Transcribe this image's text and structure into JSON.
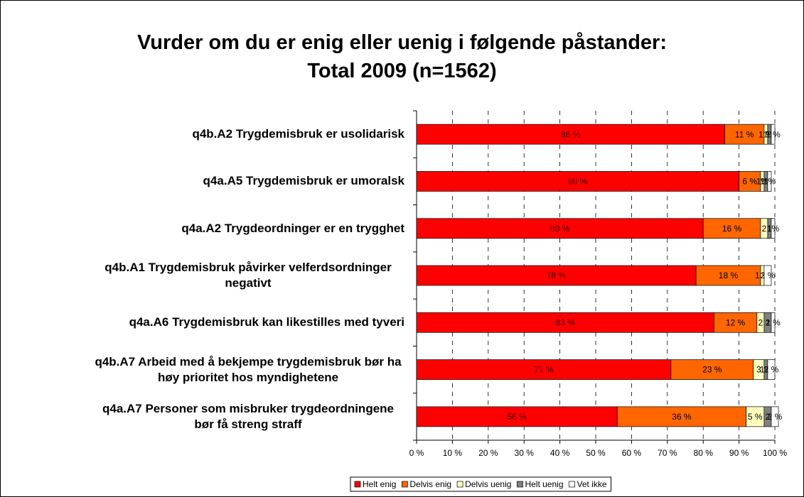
{
  "chart_data": {
    "type": "stacked_bar_horizontal",
    "title": "Vurder om du er enig eller uenig i følgende påstander:",
    "subtitle": "Total 2009 (n=1562)",
    "categories": [
      "q4b.A2 Trygdemisbruk er usolidarisk",
      "q4a.A5 Trygdemisbruk er umoralsk",
      "q4a.A2 Trygdeordninger er en trygghet",
      "q4b.A1 Trygdemisbruk påvirker velferdsordninger negativt",
      "q4a.A6 Trygdemisbruk kan likestilles med tyveri",
      "q4b.A7 Arbeid med å bekjempe trygdemisbruk bør ha høy prioritet hos myndighetene",
      "q4a.A7 Personer som misbruker trygdeordningene bør få streng straff"
    ],
    "series": [
      {
        "name": "Helt enig",
        "color": "#ff0000",
        "values": [
          86,
          90,
          80,
          78,
          83,
          71,
          56
        ],
        "value_labels": [
          "86 %",
          "90 %",
          "80 %",
          "78 %",
          "83 %",
          "71 %",
          "56 %"
        ]
      },
      {
        "name": "Delvis enig",
        "color": "#ff6600",
        "values": [
          11,
          6,
          16,
          18,
          12,
          23,
          36
        ],
        "value_labels": [
          "11 %",
          "6 %",
          "16 %",
          "18 %",
          "12 %",
          "23 %",
          "36 %"
        ]
      },
      {
        "name": "Delvis uenig",
        "color": "#ffffc0",
        "values": [
          1,
          1,
          2,
          1,
          2,
          3,
          5
        ],
        "value_labels": [
          "1 %",
          "1%",
          "2",
          "1 %",
          "2",
          "3",
          "5 %"
        ]
      },
      {
        "name": "Helt uenig",
        "color": "#808080",
        "values": [
          1,
          1,
          1,
          0,
          2,
          1,
          2
        ],
        "value_labels": [
          "1%",
          "1%",
          "1",
          null,
          "2",
          "1%",
          "2"
        ]
      },
      {
        "name": "Vet ikke",
        "color": "#ffffff",
        "values": [
          1,
          1,
          1,
          2,
          1,
          2,
          2
        ],
        "value_labels": [
          "1 %",
          "1%",
          "1%",
          "2 %",
          "1 %",
          "2 %",
          "2 %"
        ]
      }
    ],
    "xlim": [
      0,
      100
    ],
    "xticks": [
      {
        "value": 0,
        "label": "0 %"
      },
      {
        "value": 10,
        "label": "10 %"
      },
      {
        "value": 20,
        "label": "20 %"
      },
      {
        "value": 30,
        "label": "30 %"
      },
      {
        "value": 40,
        "label": "40 %"
      },
      {
        "value": 50,
        "label": "50 %"
      },
      {
        "value": 60,
        "label": "60 %"
      },
      {
        "value": 70,
        "label": "70 %"
      },
      {
        "value": 80,
        "label": "80 %"
      },
      {
        "value": 90,
        "label": "90 %"
      },
      {
        "value": 100,
        "label": "100 %"
      }
    ],
    "grid": true,
    "legend": "bottom"
  }
}
